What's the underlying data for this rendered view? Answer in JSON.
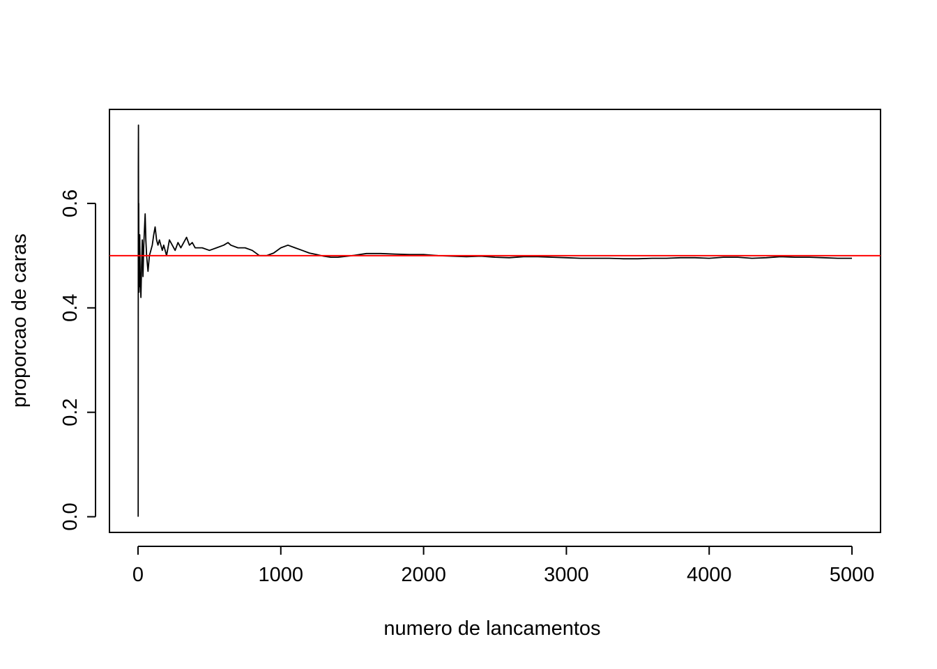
{
  "chart_data": {
    "type": "line",
    "title": "",
    "xlabel": "numero de lancamentos",
    "ylabel": "proporcao de caras",
    "xlim": [
      -200,
      5200
    ],
    "ylim": [
      -0.03,
      0.78
    ],
    "xticks": [
      0,
      1000,
      2000,
      3000,
      4000,
      5000
    ],
    "xtick_labels": [
      "0",
      "1000",
      "2000",
      "3000",
      "4000",
      "5000"
    ],
    "yticks": [
      0.0,
      0.2,
      0.4,
      0.6
    ],
    "ytick_labels": [
      "0.0",
      "0.2",
      "0.4",
      "0.6"
    ],
    "grid": false,
    "series": [
      {
        "name": "proporcao de caras",
        "color": "#000000",
        "x": [
          1,
          2,
          3,
          4,
          5,
          6,
          7,
          8,
          9,
          10,
          12,
          15,
          18,
          20,
          25,
          30,
          35,
          40,
          45,
          50,
          55,
          60,
          70,
          80,
          90,
          100,
          110,
          120,
          130,
          140,
          150,
          160,
          170,
          180,
          190,
          200,
          220,
          240,
          260,
          280,
          300,
          320,
          340,
          360,
          380,
          400,
          450,
          500,
          550,
          600,
          630,
          650,
          700,
          750,
          800,
          850,
          900,
          950,
          1000,
          1050,
          1100,
          1150,
          1200,
          1250,
          1300,
          1350,
          1400,
          1500,
          1600,
          1700,
          1800,
          1900,
          2000,
          2100,
          2200,
          2300,
          2400,
          2500,
          2600,
          2700,
          2800,
          2900,
          3000,
          3100,
          3200,
          3300,
          3400,
          3500,
          3600,
          3700,
          3800,
          3900,
          4000,
          4100,
          4200,
          4300,
          4400,
          4500,
          4600,
          4700,
          4800,
          4900,
          5000
        ],
        "values": [
          0.0,
          0.667,
          0.75,
          0.5,
          0.6,
          0.5,
          0.43,
          0.5,
          0.44,
          0.5,
          0.54,
          0.47,
          0.44,
          0.42,
          0.48,
          0.53,
          0.46,
          0.52,
          0.55,
          0.58,
          0.53,
          0.5,
          0.47,
          0.5,
          0.51,
          0.52,
          0.54,
          0.555,
          0.53,
          0.52,
          0.53,
          0.52,
          0.51,
          0.52,
          0.51,
          0.5,
          0.53,
          0.52,
          0.51,
          0.525,
          0.515,
          0.525,
          0.535,
          0.52,
          0.525,
          0.515,
          0.515,
          0.51,
          0.515,
          0.52,
          0.525,
          0.52,
          0.515,
          0.515,
          0.51,
          0.5,
          0.5,
          0.505,
          0.515,
          0.52,
          0.515,
          0.51,
          0.505,
          0.502,
          0.499,
          0.497,
          0.497,
          0.5,
          0.504,
          0.504,
          0.503,
          0.502,
          0.502,
          0.5,
          0.499,
          0.498,
          0.499,
          0.497,
          0.496,
          0.498,
          0.498,
          0.497,
          0.496,
          0.495,
          0.495,
          0.495,
          0.494,
          0.494,
          0.495,
          0.495,
          0.496,
          0.496,
          0.495,
          0.497,
          0.497,
          0.495,
          0.496,
          0.498,
          0.497,
          0.497,
          0.496,
          0.495,
          0.495
        ]
      }
    ],
    "reference_line": {
      "y": 0.5,
      "color": "#ff0000"
    }
  }
}
